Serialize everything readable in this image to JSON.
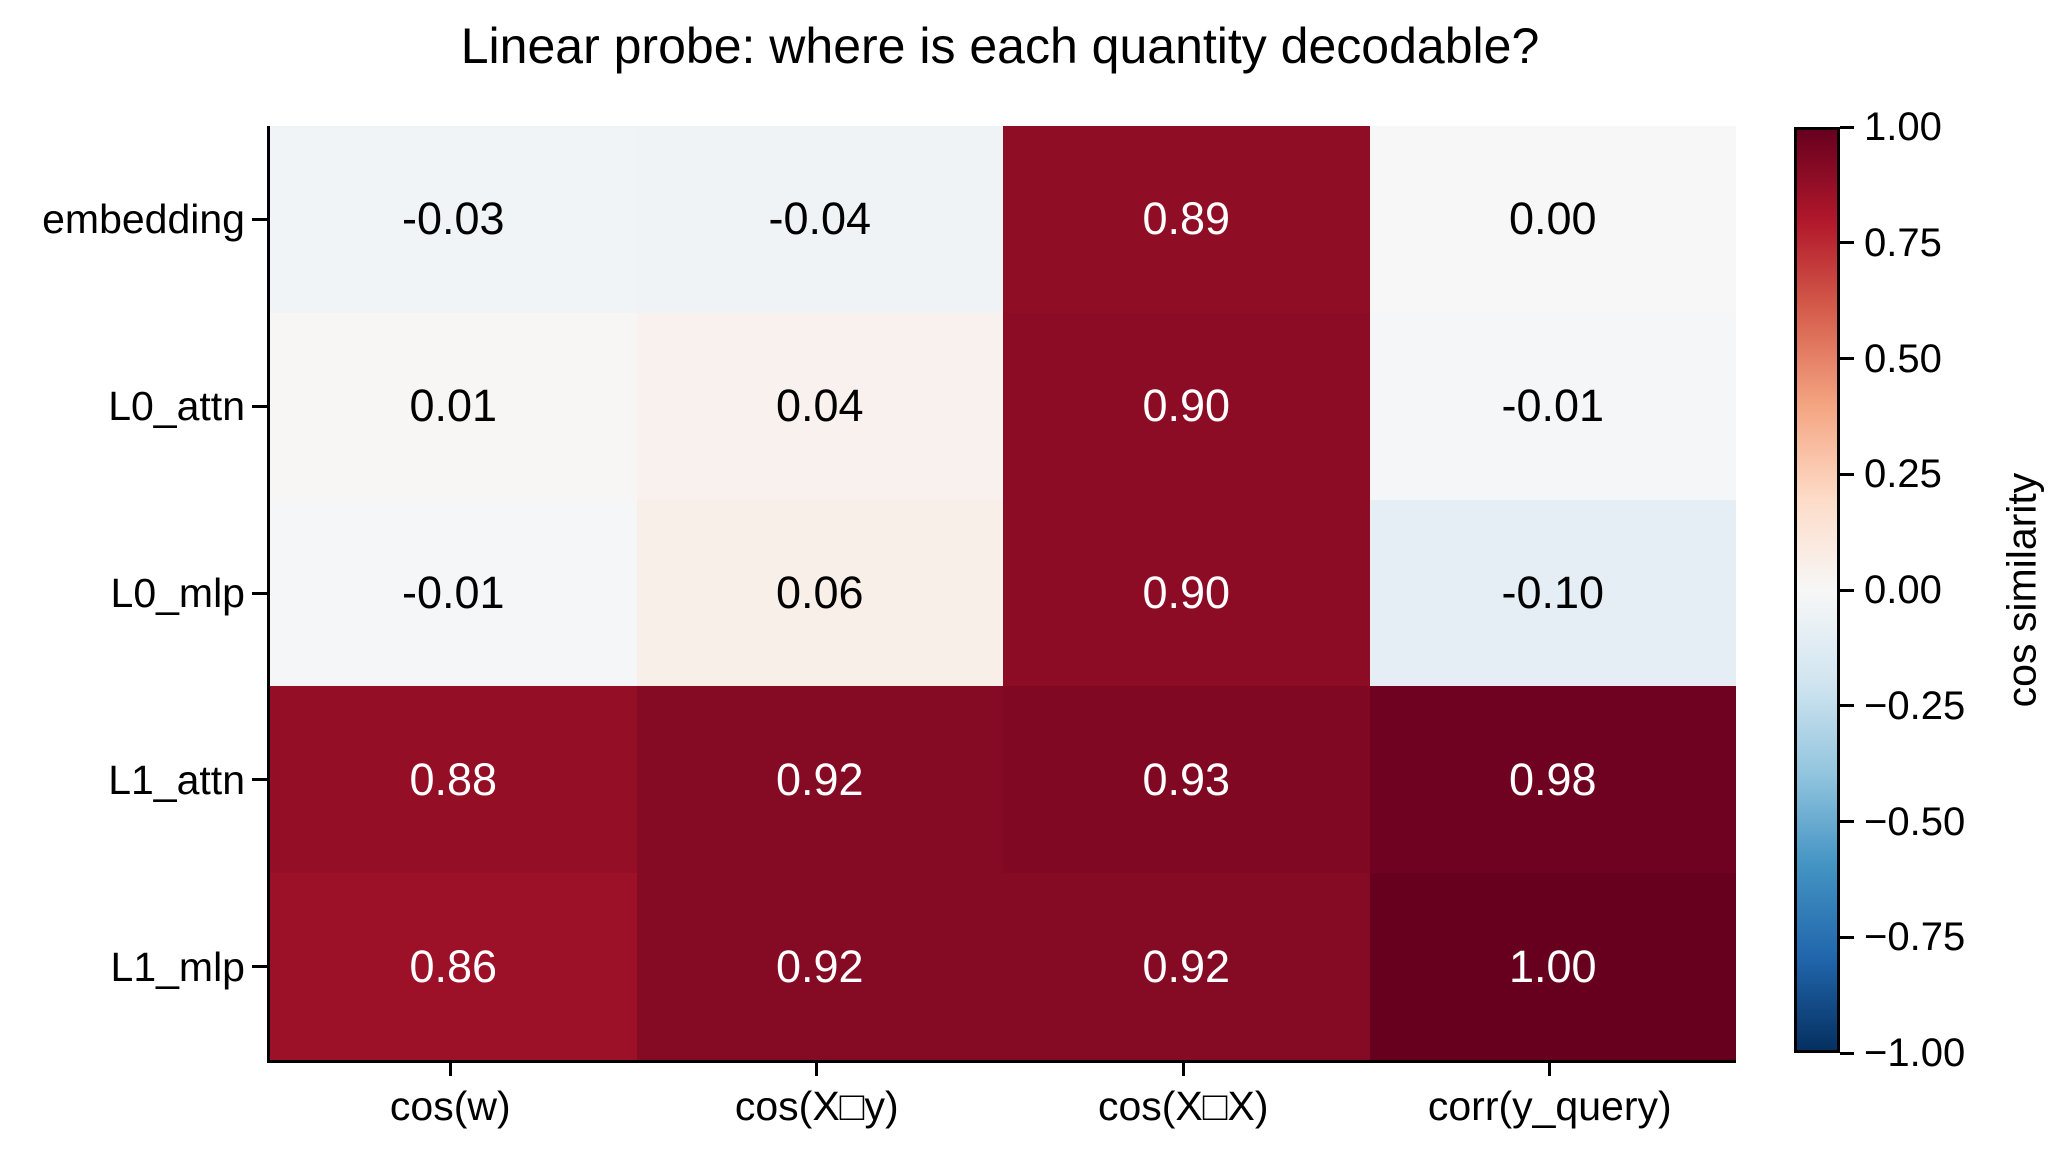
{
  "figure": {
    "background": "#ffffff"
  },
  "chart_data": {
    "type": "heatmap",
    "title": "Linear probe: where is each quantity decodable?",
    "rows": [
      "embedding",
      "L0_attn",
      "L0_mlp",
      "L1_attn",
      "L1_mlp"
    ],
    "columns": [
      "cos(w)",
      "cos(X□y)",
      "cos(X□X)",
      "corr(y_query)"
    ],
    "values": [
      [
        -0.03,
        -0.04,
        0.89,
        0.0
      ],
      [
        0.01,
        0.04,
        0.9,
        -0.01
      ],
      [
        -0.01,
        0.06,
        0.9,
        -0.1
      ],
      [
        0.88,
        0.92,
        0.93,
        0.98
      ],
      [
        0.86,
        0.92,
        0.92,
        1.0
      ]
    ],
    "cell_labels": [
      [
        "-0.03",
        "-0.04",
        "0.89",
        "0.00"
      ],
      [
        "0.01",
        "0.04",
        "0.90",
        "-0.01"
      ],
      [
        "-0.01",
        "0.06",
        "0.90",
        "-0.10"
      ],
      [
        "0.88",
        "0.92",
        "0.93",
        "0.98"
      ],
      [
        "0.86",
        "0.92",
        "0.92",
        "1.00"
      ]
    ],
    "vmin": -1,
    "vmax": 1,
    "colormap": "RdBu_r",
    "colormap_anchors": [
      "#053061",
      "#2166ac",
      "#4393c3",
      "#92c5de",
      "#d1e5f0",
      "#f7f7f7",
      "#fddbc7",
      "#f4a582",
      "#d6604d",
      "#b2182b",
      "#67001f"
    ],
    "annotation_text_colors": {
      "light_cells": "#000000",
      "dark_cells": "#ffffff"
    },
    "colorbar": {
      "label": "cos similarity",
      "tick_labels": [
        "1.00",
        "0.75",
        "0.50",
        "0.25",
        "0.00",
        "−0.25",
        "−0.50",
        "−0.75",
        "−1.00"
      ],
      "tick_values": [
        1.0,
        0.75,
        0.5,
        0.25,
        0.0,
        -0.25,
        -0.5,
        -0.75,
        -1.0
      ]
    },
    "grid": false,
    "legend_position": "none"
  }
}
